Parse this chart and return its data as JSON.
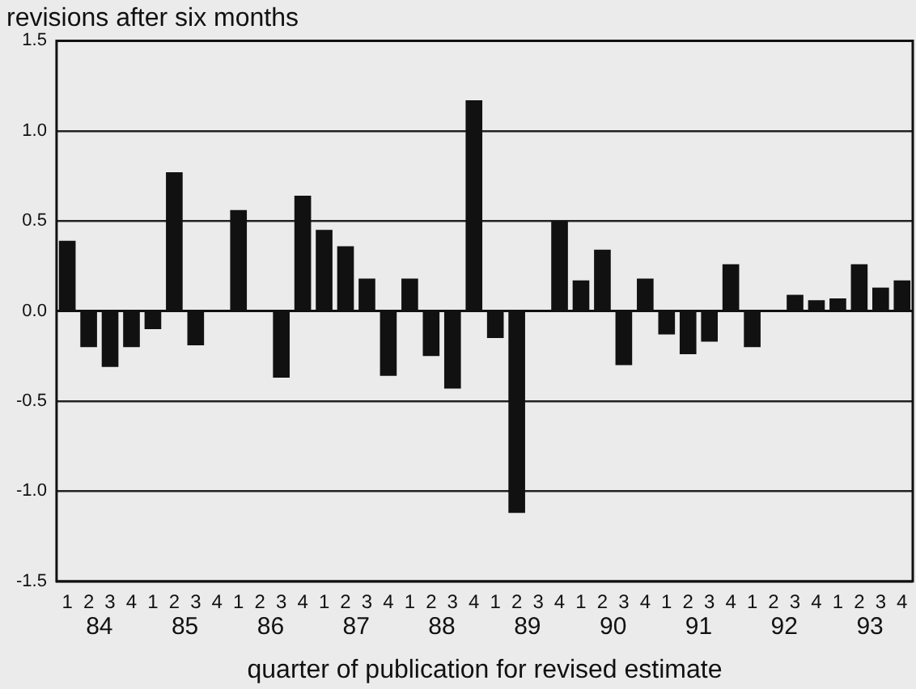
{
  "chart_data": {
    "type": "bar",
    "title": "revisions after six months",
    "xlabel": "quarter of publication for revised estimate",
    "categories": [
      "1",
      "2",
      "3",
      "4",
      "1",
      "2",
      "3",
      "4",
      "1",
      "2",
      "3",
      "4",
      "1",
      "2",
      "3",
      "4",
      "1",
      "2",
      "3",
      "4",
      "1",
      "2",
      "3",
      "4",
      "1",
      "2",
      "3",
      "4",
      "1",
      "2",
      "3",
      "4",
      "1",
      "2",
      "3",
      "4",
      "1",
      "2",
      "3",
      "4"
    ],
    "values": [
      0.39,
      -0.2,
      -0.31,
      -0.2,
      -0.1,
      0.77,
      -0.19,
      0,
      0.56,
      0,
      -0.37,
      0.64,
      0.45,
      0.36,
      0.18,
      -0.36,
      0.18,
      -0.25,
      -0.43,
      1.17,
      -0.15,
      -1.12,
      0,
      0.5,
      0.17,
      0.34,
      -0.3,
      0.18,
      -0.13,
      -0.24,
      -0.17,
      0.26,
      -0.2,
      0,
      0.09,
      0.06,
      0.07,
      0.26,
      0.13,
      0.17
    ],
    "color": "#111111",
    "annotations": [
      "84",
      "85",
      "86",
      "87",
      "88",
      "89",
      "90",
      "91",
      "92",
      "93"
    ],
    "ylim": [
      -1.5,
      1.5
    ],
    "yticks": [
      {
        "value": -1.5,
        "label": "-1.5"
      },
      {
        "value": -1,
        "label": "-1.0"
      },
      {
        "value": -0.5,
        "label": "-0.5"
      },
      {
        "value": 0,
        "label": "0.0"
      },
      {
        "value": 0.5,
        "label": "0.5"
      },
      {
        "value": 1,
        "label": "1.0"
      },
      {
        "value": 1.5,
        "label": "1.5"
      }
    ],
    "grid": "y",
    "legend": false
  }
}
